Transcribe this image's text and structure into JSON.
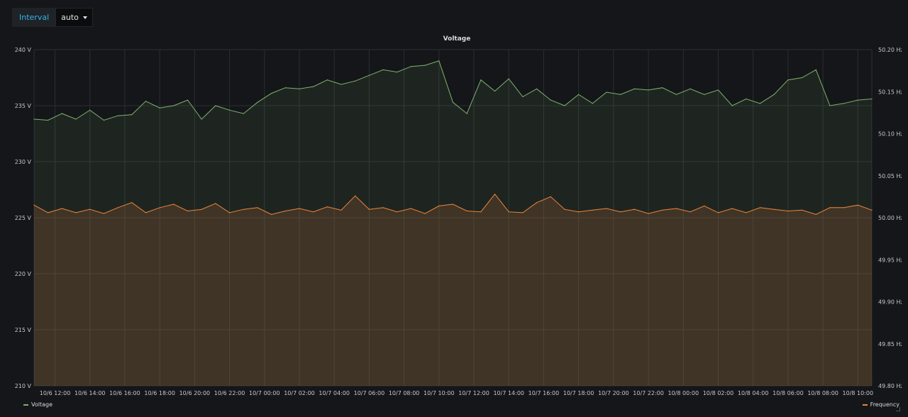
{
  "toolbar": {
    "variable_label": "Interval",
    "variable_value": "auto"
  },
  "colors": {
    "background": "#141619",
    "grid": "#2b2e33",
    "voltage": "#7eb26d",
    "frequency": "#ef843c",
    "axis_text": "#c7c8ca"
  },
  "chart_data": {
    "type": "line",
    "title": "Voltage",
    "xlabel": "",
    "ylabel": "",
    "x_tick_labels": [
      "10/6 12:00",
      "10/6 14:00",
      "10/6 16:00",
      "10/6 18:00",
      "10/6 20:00",
      "10/6 22:00",
      "10/7 00:00",
      "10/7 02:00",
      "10/7 04:00",
      "10/7 06:00",
      "10/7 08:00",
      "10/7 10:00",
      "10/7 12:00",
      "10/7 14:00",
      "10/7 16:00",
      "10/7 18:00",
      "10/7 20:00",
      "10/7 22:00",
      "10/8 00:00",
      "10/8 02:00",
      "10/8 04:00",
      "10/8 06:00",
      "10/8 08:00",
      "10/8 10:00"
    ],
    "x_range_hours": [
      10.8,
      58.8
    ],
    "y_left": {
      "unit": "V",
      "ylim": [
        210,
        240
      ],
      "tick_labels": [
        "240 V",
        "235 V",
        "230 V",
        "225 V",
        "220 V",
        "215 V",
        "210 V"
      ]
    },
    "y_right": {
      "unit": "Hz",
      "ylim": [
        49.8,
        50.2
      ],
      "tick_labels": [
        "50.20 Hz",
        "50.15 Hz",
        "50.10 Hz",
        "50.05 Hz",
        "50.00 Hz",
        "49.95 Hz",
        "49.90 Hz",
        "49.85 Hz",
        "49.80 Hz"
      ]
    },
    "grid": true,
    "legend_placement": "bottom",
    "series": [
      {
        "name": "Voltage",
        "axis": "left",
        "color": "#7eb26d",
        "x_hours": [
          10.8,
          11.6,
          12.4,
          13.2,
          14.0,
          14.8,
          15.6,
          16.4,
          17.2,
          18.0,
          18.8,
          19.6,
          20.4,
          21.2,
          22.0,
          22.8,
          23.6,
          24.4,
          25.2,
          26.0,
          26.8,
          27.6,
          28.4,
          29.2,
          30.0,
          30.8,
          31.6,
          32.4,
          33.2,
          34.0,
          34.8,
          35.6,
          36.4,
          37.2,
          38.0,
          38.8,
          39.6,
          40.4,
          41.2,
          42.0,
          42.8,
          43.6,
          44.4,
          45.2,
          46.0,
          46.8,
          47.6,
          48.4,
          49.2,
          50.0,
          50.8,
          51.6,
          52.4,
          53.2,
          54.0,
          54.8,
          55.6,
          56.4,
          57.2,
          58.0,
          58.8
        ],
        "values": [
          233.8,
          233.7,
          234.3,
          233.8,
          234.6,
          233.7,
          234.1,
          234.2,
          235.4,
          234.8,
          235.0,
          235.5,
          233.8,
          235.0,
          234.6,
          234.3,
          235.3,
          236.1,
          236.6,
          236.5,
          236.7,
          237.3,
          236.9,
          237.2,
          237.7,
          238.2,
          238.0,
          238.5,
          238.6,
          239.0,
          235.3,
          234.3,
          237.3,
          236.3,
          237.4,
          235.8,
          236.5,
          235.5,
          235.0,
          236.0,
          235.2,
          236.2,
          236.0,
          236.5,
          236.4,
          236.6,
          236.0,
          236.5,
          236.0,
          236.4,
          235.0,
          235.6,
          235.2,
          236.0,
          237.3,
          237.5,
          238.2,
          235.0,
          235.2,
          235.5,
          235.6
        ]
      },
      {
        "name": "Frequency",
        "axis": "right",
        "color": "#ef843c",
        "x_hours": [
          10.8,
          11.6,
          12.4,
          13.2,
          14.0,
          14.8,
          15.6,
          16.4,
          17.2,
          18.0,
          18.8,
          19.6,
          20.4,
          21.2,
          22.0,
          22.8,
          23.6,
          24.4,
          25.2,
          26.0,
          26.8,
          27.6,
          28.4,
          29.2,
          30.0,
          30.8,
          31.6,
          32.4,
          33.2,
          34.0,
          34.8,
          35.6,
          36.4,
          37.2,
          38.0,
          38.8,
          39.6,
          40.4,
          41.2,
          42.0,
          42.8,
          43.6,
          44.4,
          45.2,
          46.0,
          46.8,
          47.6,
          48.4,
          49.2,
          50.0,
          50.8,
          51.6,
          52.4,
          53.2,
          54.0,
          54.8,
          55.6,
          56.4,
          57.2,
          58.0,
          58.8
        ],
        "values": [
          50.015,
          50.006,
          50.011,
          50.006,
          50.01,
          50.005,
          50.012,
          50.018,
          50.006,
          50.012,
          50.016,
          50.008,
          50.01,
          50.017,
          50.006,
          50.01,
          50.012,
          50.004,
          50.008,
          50.011,
          50.007,
          50.013,
          50.009,
          50.026,
          50.01,
          50.012,
          50.007,
          50.011,
          50.005,
          50.014,
          50.016,
          50.008,
          50.007,
          50.028,
          50.007,
          50.006,
          50.018,
          50.025,
          50.01,
          50.007,
          50.009,
          50.011,
          50.007,
          50.01,
          50.005,
          50.009,
          50.011,
          50.007,
          50.014,
          50.006,
          50.011,
          50.006,
          50.012,
          50.01,
          50.008,
          50.009,
          50.004,
          50.012,
          50.012,
          50.015,
          50.009
        ]
      }
    ]
  }
}
